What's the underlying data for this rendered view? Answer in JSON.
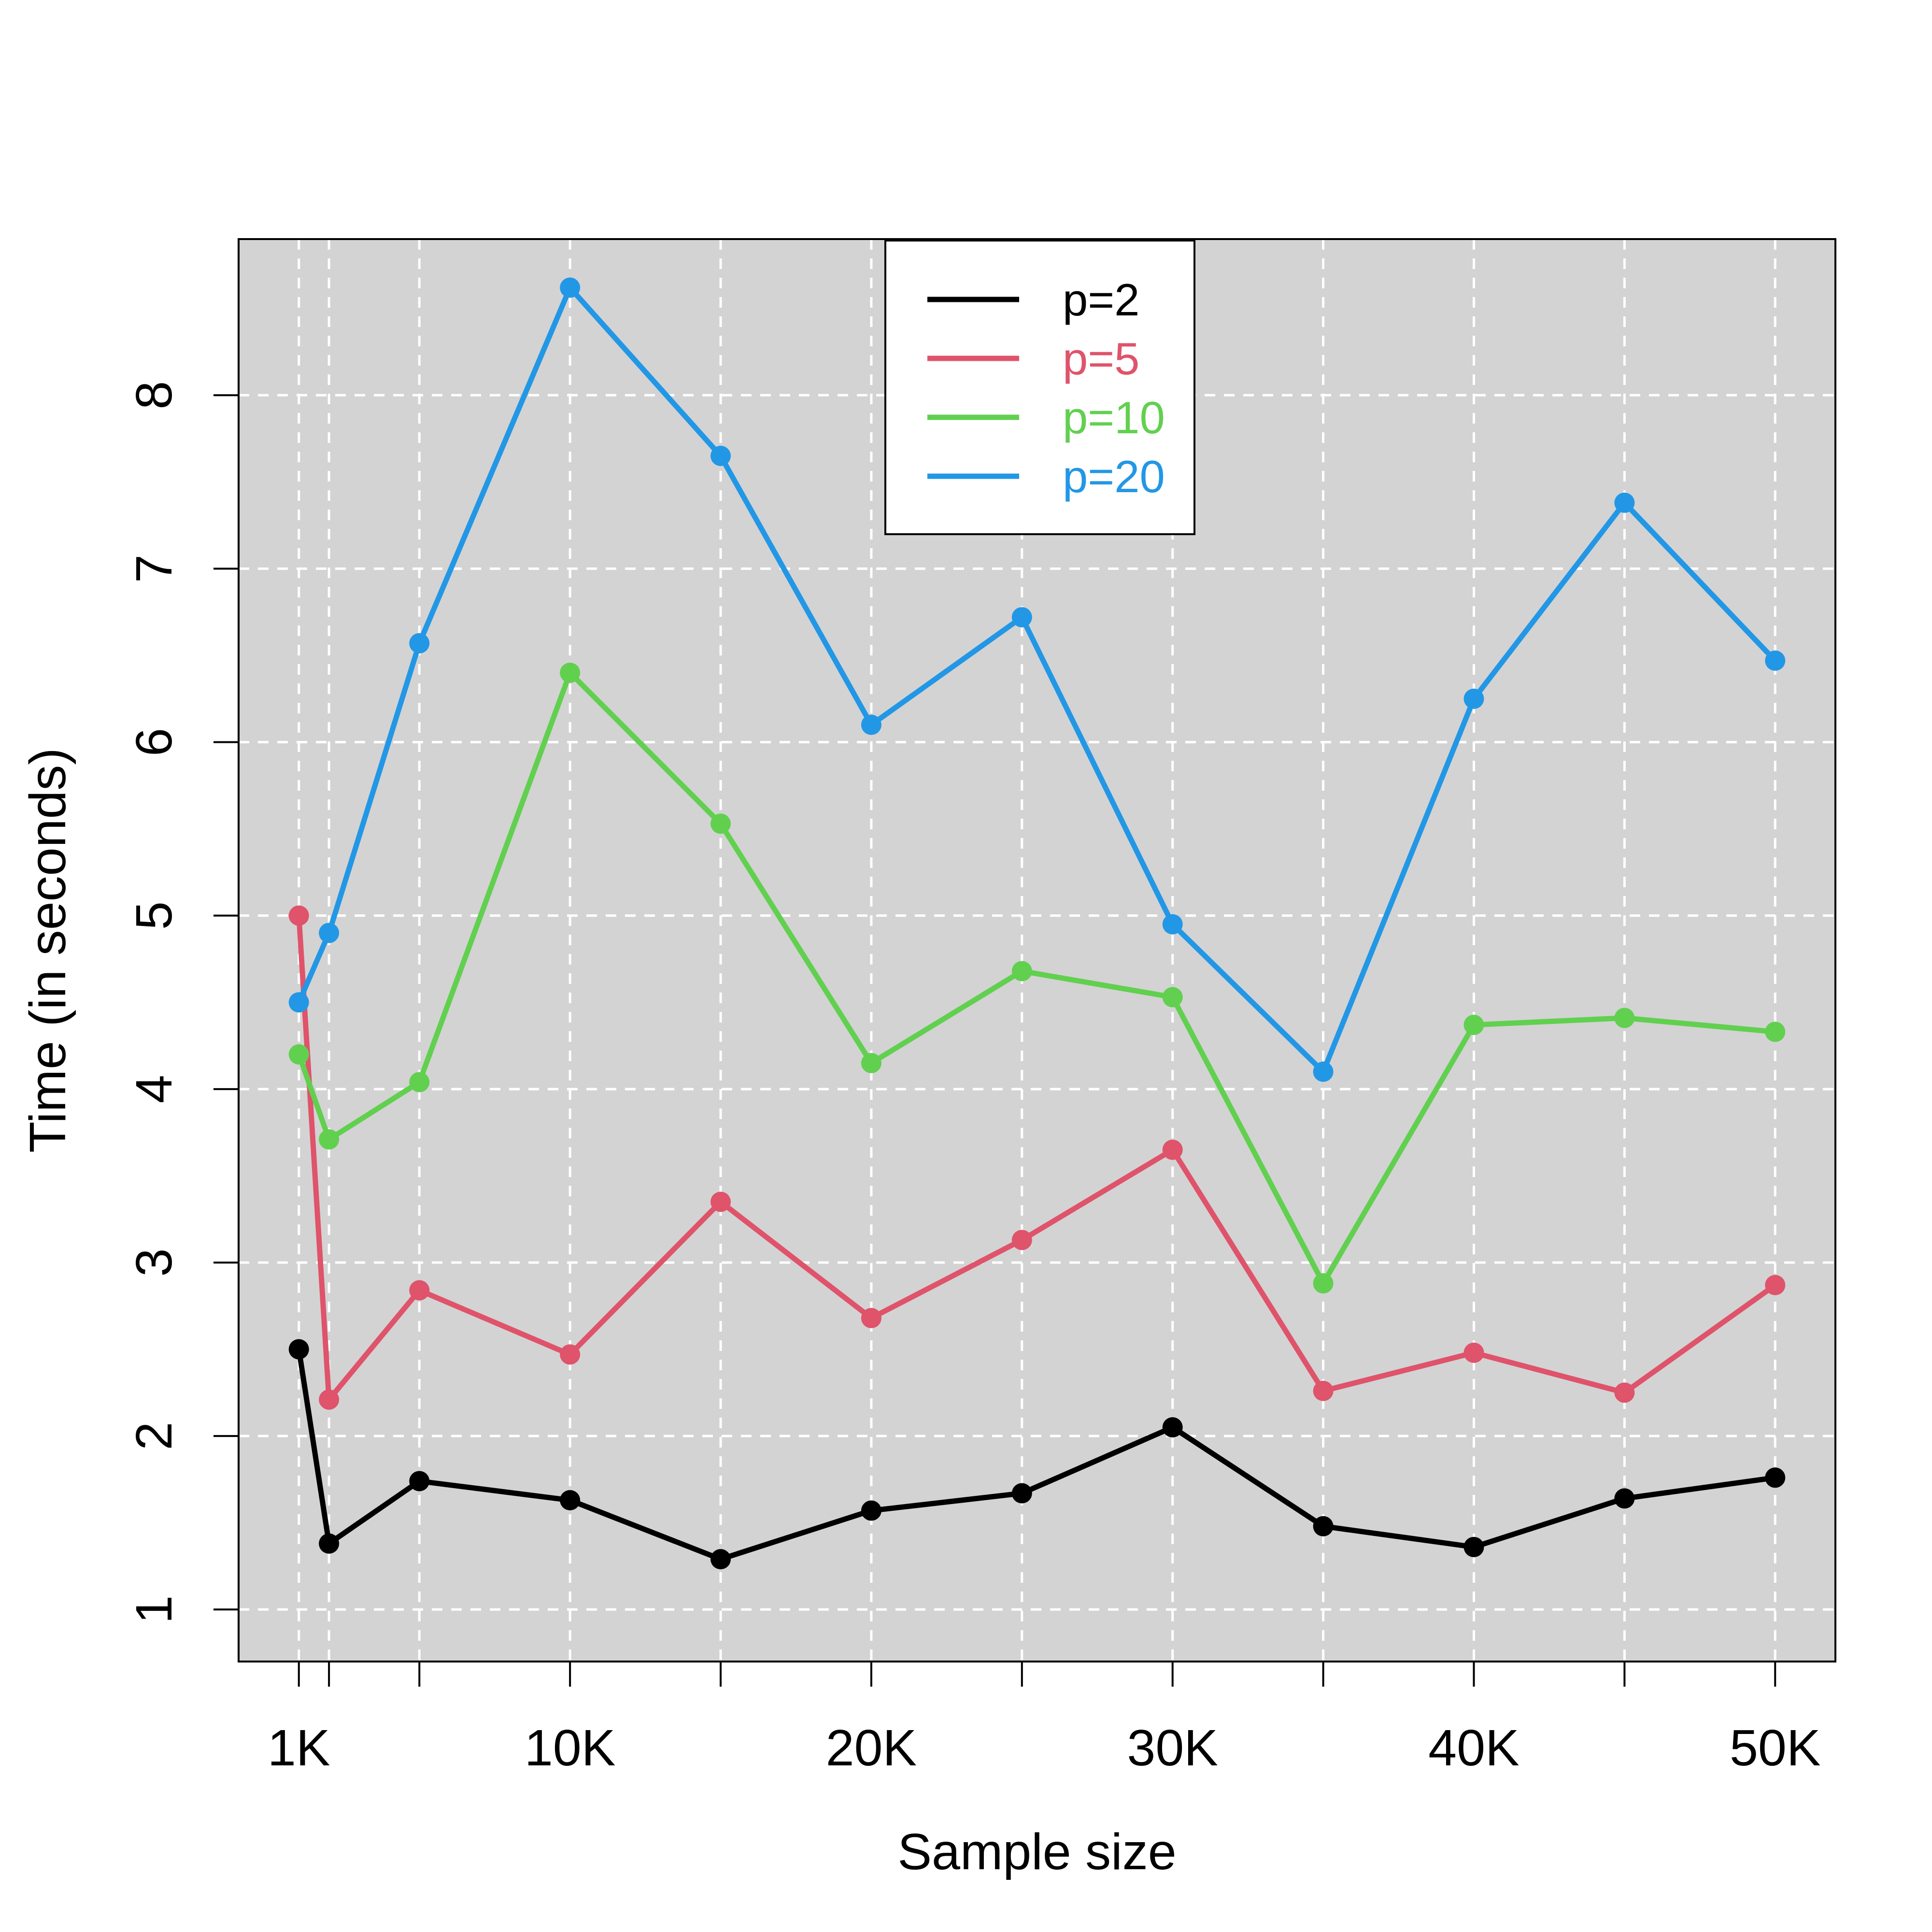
{
  "chart_data": {
    "type": "line",
    "xlabel": "Sample size",
    "ylabel": "Time (in seconds)",
    "x": [
      1000,
      2000,
      5000,
      10000,
      15000,
      20000,
      25000,
      30000,
      35000,
      40000,
      45000,
      50000
    ],
    "xlim": [
      -1000,
      52000
    ],
    "ylim": [
      0.7,
      8.9
    ],
    "x_ticks": [
      1000,
      2000,
      5000,
      10000,
      15000,
      20000,
      25000,
      30000,
      35000,
      40000,
      45000,
      50000
    ],
    "x_tick_labels": [
      {
        "value": 1000,
        "label": "1K"
      },
      {
        "value": 10000,
        "label": "10K"
      },
      {
        "value": 20000,
        "label": "20K"
      },
      {
        "value": 30000,
        "label": "30K"
      },
      {
        "value": 40000,
        "label": "40K"
      },
      {
        "value": 50000,
        "label": "50K"
      }
    ],
    "y_ticks": [
      1,
      2,
      3,
      4,
      5,
      6,
      7,
      8
    ],
    "y_tick_labels": [
      "1",
      "2",
      "3",
      "4",
      "5",
      "6",
      "7",
      "8"
    ],
    "grid": true,
    "legend_position": "top-center",
    "series": [
      {
        "name": "p=2",
        "color": "#000000",
        "values": [
          2.5,
          1.38,
          1.74,
          1.63,
          1.29,
          1.57,
          1.67,
          2.05,
          1.48,
          1.36,
          1.64,
          1.76
        ]
      },
      {
        "name": "p=5",
        "color": "#DF536B",
        "values": [
          5.0,
          2.21,
          2.84,
          2.47,
          3.35,
          2.68,
          3.13,
          3.65,
          2.26,
          2.48,
          2.25,
          2.87
        ]
      },
      {
        "name": "p=10",
        "color": "#61D04F",
        "values": [
          4.2,
          3.71,
          4.04,
          6.4,
          5.53,
          4.15,
          4.68,
          4.53,
          2.88,
          4.37,
          4.41,
          4.33
        ]
      },
      {
        "name": "p=20",
        "color": "#2297E6",
        "values": [
          4.5,
          4.9,
          6.57,
          8.62,
          7.65,
          6.1,
          6.72,
          4.95,
          4.1,
          6.25,
          7.38,
          6.47
        ]
      }
    ],
    "plot_background": "#D3D3D3",
    "grid_color": "#FFFFFF"
  }
}
